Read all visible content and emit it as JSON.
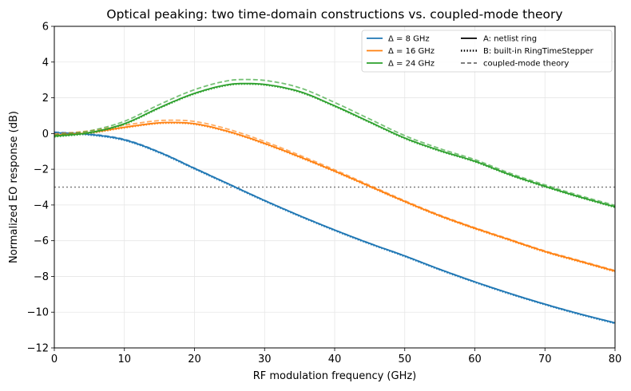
{
  "chart_data": {
    "type": "line",
    "title": "Optical peaking: two time-domain constructions vs. coupled-mode theory",
    "xlabel": "RF modulation frequency (GHz)",
    "ylabel": "Normalized EO response (dB)",
    "xlim": [
      0,
      80
    ],
    "ylim": [
      -12,
      6
    ],
    "xticks": [
      0,
      10,
      20,
      30,
      40,
      50,
      60,
      70,
      80
    ],
    "yticks": [
      -12,
      -10,
      -8,
      -6,
      -4,
      -2,
      0,
      2,
      4,
      6
    ],
    "ytick_labels": [
      "−12",
      "−10",
      "−8",
      "−6",
      "−4",
      "−2",
      "0",
      "2",
      "4",
      "6"
    ],
    "grid": true,
    "legend_position": "top-right",
    "reference_line": {
      "y": -3,
      "style": "dotted",
      "color": "#808080"
    },
    "series": [
      {
        "name": "Δ = 8 GHz",
        "color": "#1f77b4",
        "x": [
          0,
          5,
          10,
          15,
          20,
          25,
          30,
          35,
          40,
          45,
          50,
          55,
          60,
          65,
          70,
          75,
          80
        ],
        "y": [
          0.05,
          -0.05,
          -0.35,
          -1.05,
          -1.95,
          -2.85,
          -3.75,
          -4.6,
          -5.4,
          -6.15,
          -6.85,
          -7.6,
          -8.3,
          -8.95,
          -9.55,
          -10.1,
          -10.6
        ]
      },
      {
        "name": "Δ = 16 GHz",
        "color": "#ff7f0e",
        "x": [
          0,
          5,
          10,
          15,
          17,
          20,
          25,
          30,
          35,
          40,
          45,
          50,
          55,
          60,
          65,
          70,
          75,
          80
        ],
        "y": [
          -0.1,
          0.05,
          0.35,
          0.6,
          0.62,
          0.55,
          0.1,
          -0.55,
          -1.3,
          -2.1,
          -2.95,
          -3.8,
          -4.6,
          -5.3,
          -5.95,
          -6.6,
          -7.15,
          -7.7
        ]
      },
      {
        "name": "Δ = 24 GHz",
        "color": "#2ca02c",
        "x": [
          0,
          5,
          10,
          15,
          20,
          25,
          27,
          30,
          35,
          40,
          45,
          50,
          55,
          60,
          65,
          70,
          75,
          80
        ],
        "y": [
          -0.15,
          0.05,
          0.55,
          1.45,
          2.25,
          2.75,
          2.8,
          2.75,
          2.35,
          1.55,
          0.65,
          -0.25,
          -0.95,
          -1.55,
          -2.3,
          -2.95,
          -3.55,
          -4.1
        ]
      }
    ],
    "style_legend": [
      {
        "label": "A: netlist ring",
        "style": "solid"
      },
      {
        "label": "B: built-in RingTimeStepper",
        "style": "dotted"
      },
      {
        "label": "coupled-mode theory",
        "style": "dashed"
      }
    ]
  }
}
